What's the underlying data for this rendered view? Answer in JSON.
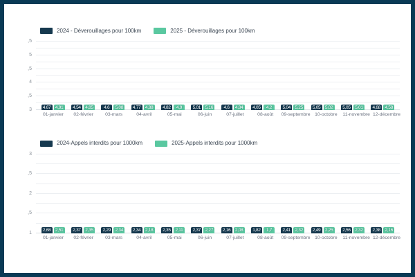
{
  "frame": {
    "border_color": "#0a3a55",
    "background": "#ffffff"
  },
  "colors": {
    "series_2024": "#16394f",
    "series_2025": "#5ac8a0",
    "gridline": "#eceff2",
    "axis_text": "#8a9199"
  },
  "chart_data": [
    {
      "type": "bar",
      "title": "",
      "legend_position": "top-left",
      "grid": true,
      "legend": [
        {
          "label": "2024 - Déverouillages pour 100km",
          "color": "#16394f"
        },
        {
          "label": "2025 - Déverouillages pour 100km",
          "color": "#5ac8a0"
        }
      ],
      "categories": [
        "01-janvier",
        "02-février",
        "03-mars",
        "04-avril",
        "05-mai",
        "06-juin",
        "07-juillet",
        "08-août",
        "09-septembre",
        "10-octobre",
        "11-novembre",
        "12-décembre"
      ],
      "series": [
        {
          "name": "2024 - Déverouillages pour 100km",
          "color": "#16394f",
          "values": [
            4.67,
            4.54,
            4.6,
            4.77,
            4.82,
            5.01,
            4.6,
            4.05,
            5.04,
            5.05,
            5.05,
            4.68
          ],
          "labels": [
            "4,67",
            "4,54",
            "4,6",
            "4,77",
            "4,82",
            "5,01",
            "4,6",
            "4,05",
            "5,04",
            "5,05",
            "5,05",
            "4,68"
          ]
        },
        {
          "name": "2025 - Déverouillages pour 100km",
          "color": "#5ac8a0",
          "values": [
            4.91,
            4.85,
            5.08,
            4.88,
            4.9,
            5.16,
            4.84,
            4.2,
            5.25,
            5.02,
            5.01,
            4.58
          ],
          "labels": [
            "4,91",
            "4,85",
            "5,08",
            "4,88",
            "4,9",
            "5,16",
            "4,84",
            "4,2",
            "5,25",
            "5,02",
            "5,01",
            "4,58"
          ]
        }
      ],
      "ylim": [
        3,
        5.5
      ],
      "minor_step": 0.25,
      "yticks": [
        {
          "value": 5.5,
          "label": ",5"
        },
        {
          "value": 5,
          "label": "5"
        },
        {
          "value": 4.5,
          "label": ",5"
        },
        {
          "value": 4,
          "label": "4"
        },
        {
          "value": 3.5,
          "label": ",5"
        },
        {
          "value": 3,
          "label": "3"
        }
      ]
    },
    {
      "type": "bar",
      "title": "",
      "legend_position": "top-left",
      "grid": true,
      "legend": [
        {
          "label": "2024-Appels interdits pour 1000km",
          "color": "#16394f"
        },
        {
          "label": "2025-Appels interdits pour 1000km",
          "color": "#5ac8a0"
        }
      ],
      "categories": [
        "01-janvier",
        "02-février",
        "03-mars",
        "04-avril",
        "05-mai",
        "06-juin",
        "07-juillet",
        "08-août",
        "09-septembre",
        "10-octobre",
        "11-novembre",
        "12-décembre"
      ],
      "series": [
        {
          "name": "2024-Appels interdits pour 1000km",
          "color": "#16394f",
          "values": [
            2.68,
            2.37,
            2.29,
            2.34,
            2.35,
            2.37,
            2.16,
            1.82,
            2.41,
            2.49,
            2.56,
            2.38
          ],
          "labels": [
            "2,68",
            "2,37",
            "2,29",
            "2,34",
            "2,35",
            "2,37",
            "2,16",
            "1,82",
            "2,41",
            "2,49",
            "2,56",
            "2,38"
          ]
        },
        {
          "name": "2025-Appels interdits pour 1000km",
          "color": "#5ac8a0",
          "values": [
            2.51,
            2.35,
            2.34,
            2.18,
            2.11,
            2.27,
            2.08,
            1.7,
            2.32,
            2.25,
            2.32,
            2.16
          ],
          "labels": [
            "2,51",
            "2,35",
            "2,34",
            "2,18",
            "2,11",
            "2,27",
            "2,08",
            "1,7",
            "2,32",
            "2,25",
            "2,32",
            "2,16"
          ]
        }
      ],
      "ylim": [
        1,
        3
      ],
      "minor_step": 0.25,
      "yticks": [
        {
          "value": 3,
          "label": "3"
        },
        {
          "value": 2.5,
          "label": ",5"
        },
        {
          "value": 2,
          "label": "2"
        },
        {
          "value": 1.5,
          "label": ",5"
        },
        {
          "value": 1,
          "label": "1"
        }
      ]
    }
  ]
}
